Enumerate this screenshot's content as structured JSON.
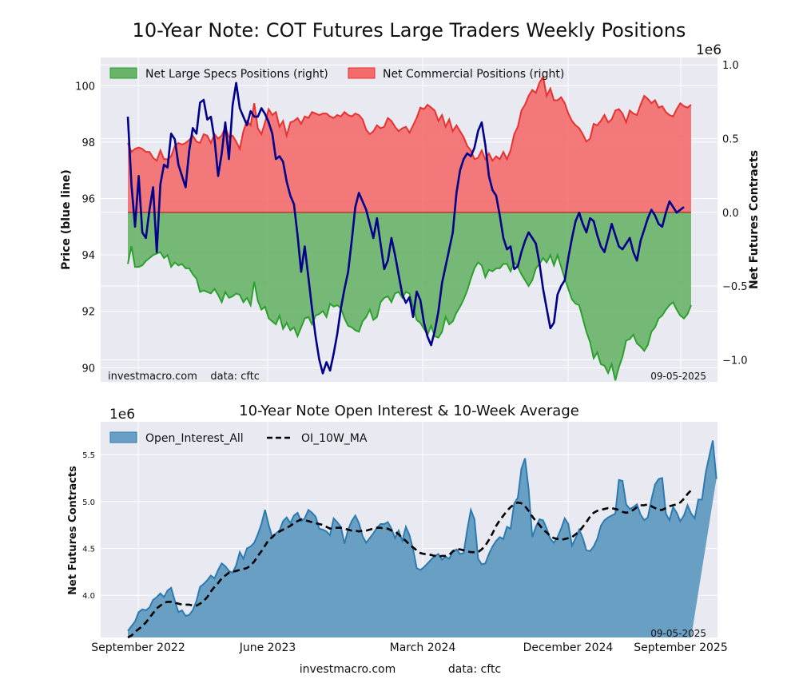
{
  "title": "10-Year Note: COT Futures Large Traders Weekly Positions",
  "colors": {
    "plot_bg": "#e9e9f1",
    "specs_fill": "#69b468",
    "specs_line": "#2ca02c",
    "comm_fill": "#f46b6b",
    "comm_line": "#e8322f",
    "price_line": "#00008b",
    "oi_fill": "#6a9fc4",
    "oi_line": "#2b7bb1",
    "ma_line": "#000000"
  },
  "chart_data": [
    {
      "type": "area",
      "title": "10-Year Note: COT Futures Large Traders Weekly Positions",
      "ylabel_left": "Price (blue line)",
      "ylabel_right": "Net Futures Contracts",
      "right_axis_multiplier": "1e6",
      "ylim_left": [
        89.5,
        101
      ],
      "ylim_right": [
        -1.15,
        1.05
      ],
      "yticks_left": [
        "90",
        "92",
        "94",
        "96",
        "98",
        "100"
      ],
      "yticks_right": [
        "−1.0",
        "−0.5",
        "0.0",
        "0.5",
        "1.0"
      ],
      "legend": [
        "Net Large Specs Positions (right)",
        "Net Commercial Positions (right)"
      ],
      "footer_left": "investmacro.com    data: cftc",
      "footer_right": "09-05-2025",
      "weeks": 157,
      "series": [
        {
          "name": "Net Large Specs Positions (right)",
          "unit": "million contracts",
          "values": [
            -0.35,
            -0.23,
            -0.37,
            -0.37,
            -0.36,
            -0.33,
            -0.31,
            -0.29,
            -0.28,
            -0.27,
            -0.31,
            -0.29,
            -0.37,
            -0.34,
            -0.36,
            -0.35,
            -0.38,
            -0.38,
            -0.42,
            -0.45,
            -0.54,
            -0.53,
            -0.54,
            -0.55,
            -0.52,
            -0.56,
            -0.61,
            -0.54,
            -0.58,
            -0.57,
            -0.55,
            -0.56,
            -0.61,
            -0.58,
            -0.63,
            -0.47,
            -0.6,
            -0.66,
            -0.64,
            -0.72,
            -0.74,
            -0.76,
            -0.7,
            -0.79,
            -0.75,
            -0.8,
            -0.78,
            -0.84,
            -0.78,
            -0.72,
            -0.71,
            -0.76,
            -0.7,
            -0.69,
            -0.67,
            -0.71,
            -0.62,
            -0.64,
            -0.63,
            -0.65,
            -0.72,
            -0.77,
            -0.78,
            -0.8,
            -0.81,
            -0.74,
            -0.71,
            -0.66,
            -0.73,
            -0.71,
            -0.61,
            -0.58,
            -0.57,
            -0.61,
            -0.55,
            -0.54,
            -0.58,
            -0.54,
            -0.55,
            -0.64,
            -0.73,
            -0.75,
            -0.79,
            -0.83,
            -0.77,
            -0.84,
            -0.85,
            -0.81,
            -0.71,
            -0.76,
            -0.74,
            -0.68,
            -0.64,
            -0.59,
            -0.53,
            -0.45,
            -0.38,
            -0.34,
            -0.36,
            -0.44,
            -0.39,
            -0.4,
            -0.38,
            -0.38,
            -0.35,
            -0.35,
            -0.4,
            -0.34,
            -0.37,
            -0.42,
            -0.46,
            -0.5,
            -0.46,
            -0.38,
            -0.35,
            -0.31,
            -0.34,
            -0.29,
            -0.36,
            -0.29,
            -0.37,
            -0.45,
            -0.52,
            -0.59,
            -0.62,
            -0.63,
            -0.72,
            -0.81,
            -0.88,
            -0.99,
            -0.95,
            -1.03,
            -1.04,
            -1.09,
            -1.03,
            -1.14,
            -1.05,
            -0.98,
            -0.87,
            -0.86,
            -0.83,
            -0.89,
            -0.91,
            -0.94,
            -0.9,
            -0.81,
            -0.78,
            -0.72,
            -0.7,
            -0.66,
            -0.63,
            -0.61,
            -0.66,
            -0.7,
            -0.72,
            -0.69,
            -0.63
          ]
        },
        {
          "name": "Net Commercial Positions (right)",
          "unit": "million contracts",
          "values": [
            0.47,
            0.41,
            0.43,
            0.44,
            0.43,
            0.41,
            0.41,
            0.37,
            0.35,
            0.42,
            0.36,
            0.36,
            0.38,
            0.45,
            0.47,
            0.46,
            0.47,
            0.49,
            0.52,
            0.48,
            0.47,
            0.53,
            0.52,
            0.47,
            0.53,
            0.5,
            0.52,
            0.58,
            0.51,
            0.52,
            0.48,
            0.43,
            0.55,
            0.62,
            0.59,
            0.74,
            0.57,
            0.53,
            0.61,
            0.7,
            0.66,
            0.68,
            0.58,
            0.62,
            0.52,
            0.61,
            0.62,
            0.64,
            0.6,
            0.65,
            0.64,
            0.68,
            0.67,
            0.66,
            0.67,
            0.67,
            0.65,
            0.64,
            0.66,
            0.65,
            0.68,
            0.66,
            0.65,
            0.67,
            0.66,
            0.63,
            0.56,
            0.53,
            0.55,
            0.59,
            0.57,
            0.58,
            0.64,
            0.62,
            0.58,
            0.55,
            0.57,
            0.58,
            0.54,
            0.59,
            0.64,
            0.71,
            0.7,
            0.73,
            0.71,
            0.69,
            0.62,
            0.66,
            0.58,
            0.63,
            0.55,
            0.59,
            0.55,
            0.51,
            0.45,
            0.42,
            0.36,
            0.37,
            0.42,
            0.36,
            0.4,
            0.35,
            0.38,
            0.36,
            0.41,
            0.36,
            0.42,
            0.53,
            0.58,
            0.69,
            0.73,
            0.79,
            0.83,
            0.81,
            0.88,
            0.92,
            0.79,
            0.84,
            0.76,
            0.76,
            0.78,
            0.74,
            0.67,
            0.62,
            0.59,
            0.57,
            0.53,
            0.48,
            0.5,
            0.6,
            0.59,
            0.62,
            0.66,
            0.61,
            0.63,
            0.69,
            0.7,
            0.67,
            0.61,
            0.69,
            0.67,
            0.66,
            0.73,
            0.79,
            0.77,
            0.74,
            0.76,
            0.71,
            0.72,
            0.68,
            0.66,
            0.65,
            0.7,
            0.74,
            0.72,
            0.71,
            0.73
          ]
        },
        {
          "name": "Price (blue line)",
          "unit": "price",
          "values": [
            98.9,
            96.5,
            95.0,
            96.8,
            94.8,
            94.6,
            95.6,
            96.4,
            94.1,
            96.5,
            97.2,
            97.1,
            98.3,
            98.1,
            97.2,
            96.8,
            96.4,
            97.7,
            98.5,
            98.3,
            99.4,
            99.5,
            98.8,
            98.9,
            98.1,
            96.8,
            97.6,
            98.7,
            97.4,
            99.3,
            100.1,
            99.2,
            98.9,
            98.6,
            99.1,
            98.9,
            98.9,
            99.2,
            99.0,
            98.7,
            98.3,
            97.4,
            97.5,
            97.3,
            96.6,
            96.1,
            95.8,
            94.7,
            93.4,
            94.3,
            93.2,
            92.1,
            91.1,
            90.3,
            89.8,
            90.2,
            89.9,
            90.5,
            91.2,
            92.1,
            92.8,
            93.4,
            94.5,
            95.7,
            96.2,
            95.9,
            95.6,
            95.1,
            94.6,
            95.3,
            94.4,
            93.5,
            93.8,
            94.6,
            94.0,
            93.3,
            92.6,
            92.3,
            92.5,
            91.8,
            92.7,
            92.4,
            91.6,
            91.1,
            90.8,
            91.3,
            92.0,
            93.0,
            93.6,
            94.2,
            94.8,
            96.2,
            97.0,
            97.4,
            97.6,
            97.5,
            97.8,
            98.4,
            98.7,
            97.9,
            96.8,
            96.3,
            96.1,
            95.4,
            94.6,
            94.2,
            94.3,
            93.5,
            93.6,
            94.1,
            94.5,
            94.8,
            94.6,
            94.4,
            93.7,
            92.8,
            92.1,
            91.4,
            91.6,
            92.6,
            92.9,
            93.1,
            93.9,
            94.6,
            95.2,
            95.5,
            95.1,
            94.8,
            95.3,
            95.2,
            94.7,
            94.3,
            94.1,
            94.6,
            95.1,
            94.7,
            94.3,
            94.2,
            94.4,
            94.6,
            94.1,
            93.8,
            94.5,
            94.9,
            95.3,
            95.6,
            95.4,
            95.1,
            95.0,
            95.5,
            95.9,
            95.7,
            95.5,
            95.6,
            95.7
          ]
        }
      ]
    },
    {
      "type": "area",
      "title": "10-Year Note Open Interest & 10-Week Average",
      "ylabel": "Net Futures Contracts",
      "axis_multiplier": "1e6",
      "ylim": [
        3.55,
        5.85
      ],
      "yticks": [
        "4.0",
        "4.5",
        "5.0",
        "5.5"
      ],
      "xticks": [
        "September 2022",
        "June 2023",
        "March 2024",
        "December 2024",
        "September 2025"
      ],
      "legend": [
        "Open_Interest_All",
        "OI_10W_MA"
      ],
      "footer_right": "09-05-2025",
      "weeks": 157,
      "series": [
        {
          "name": "Open_Interest_All",
          "unit": "million contracts",
          "values": [
            3.62,
            3.67,
            3.72,
            3.82,
            3.85,
            3.84,
            3.87,
            3.95,
            3.98,
            4.02,
            3.98,
            4.05,
            4.08,
            3.94,
            3.82,
            3.84,
            3.78,
            3.79,
            3.84,
            3.94,
            4.09,
            4.12,
            4.16,
            4.21,
            4.18,
            4.27,
            4.34,
            4.31,
            4.26,
            4.24,
            4.32,
            4.46,
            4.39,
            4.5,
            4.52,
            4.56,
            4.65,
            4.76,
            4.91,
            4.75,
            4.62,
            4.66,
            4.69,
            4.79,
            4.83,
            4.77,
            4.85,
            4.88,
            4.79,
            4.82,
            4.91,
            4.88,
            4.84,
            4.71,
            4.7,
            4.68,
            4.64,
            4.82,
            4.78,
            4.73,
            4.55,
            4.7,
            4.79,
            4.85,
            4.77,
            4.63,
            4.56,
            4.61,
            4.66,
            4.72,
            4.76,
            4.76,
            4.78,
            4.71,
            4.61,
            4.69,
            4.58,
            4.73,
            4.64,
            4.49,
            4.29,
            4.27,
            4.3,
            4.34,
            4.38,
            4.42,
            4.44,
            4.38,
            4.41,
            4.39,
            4.46,
            4.49,
            4.44,
            4.45,
            4.7,
            4.91,
            4.81,
            4.39,
            4.33,
            4.34,
            4.44,
            4.52,
            4.58,
            4.62,
            4.6,
            4.73,
            4.71,
            4.98,
            5.04,
            5.35,
            5.46,
            5.13,
            4.62,
            4.73,
            4.81,
            4.8,
            4.71,
            4.6,
            4.56,
            4.62,
            4.71,
            4.82,
            4.76,
            4.53,
            4.61,
            4.7,
            4.61,
            4.48,
            4.47,
            4.52,
            4.6,
            4.74,
            4.8,
            4.83,
            4.85,
            4.87,
            5.23,
            5.22,
            4.97,
            4.92,
            4.94,
            4.97,
            4.86,
            4.8,
            4.83,
            5.02,
            5.18,
            5.24,
            5.25,
            4.87,
            4.8,
            4.94,
            4.88,
            4.79,
            4.85,
            4.96,
            4.87,
            4.82,
            5.02,
            5.02,
            5.3,
            5.48,
            5.65,
            5.24
          ]
        },
        {
          "name": "OI_10W_MA",
          "unit": "million contracts",
          "values": [
            3.54,
            3.57,
            3.61,
            3.64,
            3.67,
            3.71,
            3.76,
            3.81,
            3.86,
            3.89,
            3.92,
            3.93,
            3.93,
            3.92,
            3.91,
            3.9,
            3.9,
            3.9,
            3.89,
            3.89,
            3.91,
            3.94,
            3.98,
            4.04,
            4.09,
            4.13,
            4.18,
            4.21,
            4.24,
            4.25,
            4.26,
            4.27,
            4.28,
            4.29,
            4.32,
            4.36,
            4.42,
            4.47,
            4.53,
            4.59,
            4.62,
            4.66,
            4.68,
            4.7,
            4.72,
            4.74,
            4.77,
            4.79,
            4.81,
            4.8,
            4.79,
            4.78,
            4.77,
            4.76,
            4.75,
            4.73,
            4.71,
            4.72,
            4.72,
            4.72,
            4.71,
            4.7,
            4.69,
            4.69,
            4.68,
            4.69,
            4.69,
            4.7,
            4.71,
            4.72,
            4.72,
            4.71,
            4.71,
            4.69,
            4.68,
            4.65,
            4.61,
            4.58,
            4.54,
            4.51,
            4.48,
            4.45,
            4.44,
            4.44,
            4.43,
            4.42,
            4.41,
            4.42,
            4.42,
            4.43,
            4.47,
            4.49,
            4.49,
            4.48,
            4.47,
            4.46,
            4.46,
            4.46,
            4.49,
            4.53,
            4.59,
            4.66,
            4.74,
            4.8,
            4.85,
            4.9,
            4.94,
            4.97,
            4.99,
            4.98,
            4.95,
            4.9,
            4.84,
            4.79,
            4.75,
            4.7,
            4.67,
            4.63,
            4.61,
            4.6,
            4.59,
            4.6,
            4.61,
            4.62,
            4.65,
            4.68,
            4.73,
            4.78,
            4.84,
            4.88,
            4.9,
            4.91,
            4.92,
            4.93,
            4.93,
            4.92,
            4.91,
            4.89,
            4.88,
            4.89,
            4.91,
            4.94,
            4.96,
            4.96,
            4.97,
            4.95,
            4.93,
            4.91,
            4.91,
            4.93,
            4.95,
            4.96,
            4.97,
            4.99,
            5.03,
            5.08,
            5.12
          ]
        }
      ]
    }
  ],
  "footer": {
    "site": "investmacro.com",
    "source": "data: cftc"
  }
}
